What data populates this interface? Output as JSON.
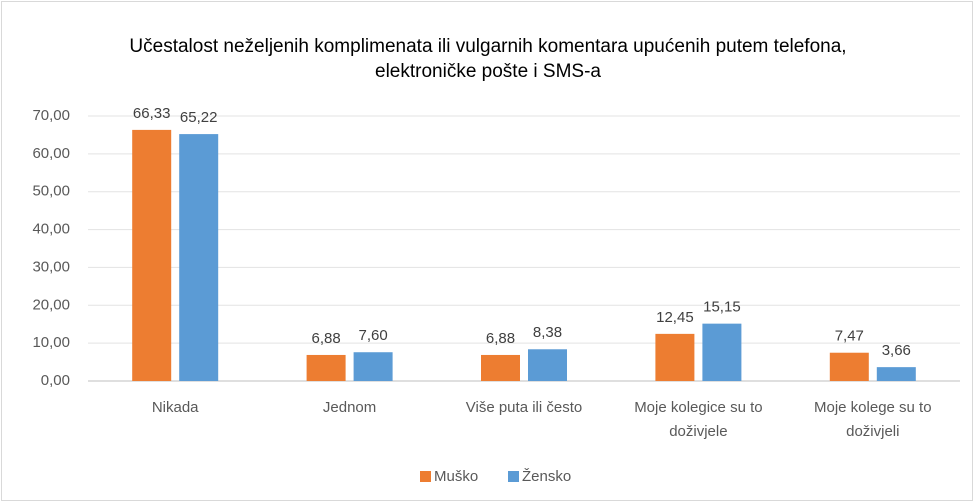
{
  "chart_data": {
    "type": "bar",
    "title": "Učestalost neželjenih komplimenata ili vulgarnih komentara upućenih putem telefona, elektroničke pošte i SMS-a",
    "categories": [
      "Nikada",
      "Jednom",
      "Više puta ili često",
      "Moje kolegice su to doživjele",
      "Moje kolege su to doživjeli"
    ],
    "series": [
      {
        "name": "Muško",
        "color": "#ed7d31",
        "values": [
          66.33,
          6.88,
          6.88,
          12.45,
          7.47
        ],
        "value_labels": [
          "66,33",
          "6,88",
          "6,88",
          "12,45",
          "7,47"
        ]
      },
      {
        "name": "Žensko",
        "color": "#5b9bd5",
        "values": [
          65.22,
          7.6,
          8.38,
          15.15,
          3.66
        ],
        "value_labels": [
          "65,22",
          "7,60",
          "8,38",
          "15,15",
          "3,66"
        ]
      }
    ],
    "ylim": [
      0,
      70
    ],
    "yticks": [
      {
        "value": 0,
        "label": "0,00"
      },
      {
        "value": 10,
        "label": "10,00"
      },
      {
        "value": 20,
        "label": "20,00"
      },
      {
        "value": 30,
        "label": "30,00"
      },
      {
        "value": 40,
        "label": "40,00"
      },
      {
        "value": 50,
        "label": "50,00"
      },
      {
        "value": 60,
        "label": "60,00"
      },
      {
        "value": 70,
        "label": "70,00"
      }
    ],
    "grid": true,
    "legend": "bottom"
  }
}
